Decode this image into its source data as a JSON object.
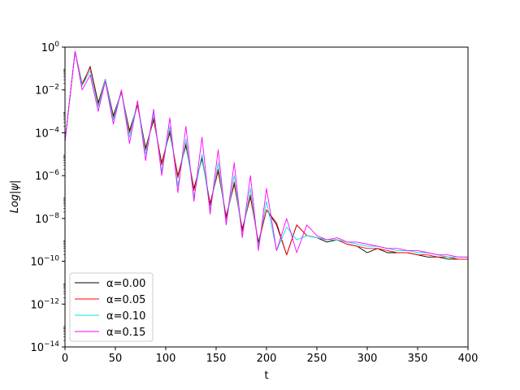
{
  "chart_data": {
    "type": "line",
    "title": "",
    "xlabel": "t",
    "ylabel": "Log|ψ|",
    "xlim": [
      0,
      400
    ],
    "ylim_exponent": [
      -14,
      0
    ],
    "yscale": "log",
    "grid": false,
    "legend_position": "lower-left",
    "x_ticks": [
      "0",
      "50",
      "100",
      "150",
      "200",
      "250",
      "300",
      "350",
      "400"
    ],
    "y_ticks": [
      {
        "base": "10",
        "exp": "0"
      },
      {
        "base": "10",
        "exp": "−2"
      },
      {
        "base": "10",
        "exp": "−4"
      },
      {
        "base": "10",
        "exp": "−6"
      },
      {
        "base": "10",
        "exp": "−8"
      },
      {
        "base": "10",
        "exp": "−10"
      },
      {
        "base": "10",
        "exp": "−12"
      },
      {
        "base": "10",
        "exp": "−14"
      }
    ],
    "series": [
      {
        "name": "α=0.00",
        "color": "#000000",
        "x": [
          0,
          10,
          17,
          25,
          33,
          40,
          48,
          56,
          64,
          72,
          80,
          88,
          96,
          104,
          112,
          120,
          128,
          136,
          144,
          152,
          160,
          168,
          176,
          184,
          192,
          200,
          210,
          220,
          230,
          240,
          250,
          260,
          270,
          280,
          290,
          300,
          310,
          320,
          330,
          340,
          350,
          360,
          370,
          380,
          390,
          400
        ],
        "y": [
          -4.4,
          -0.2,
          -1.8,
          -0.9,
          -2.6,
          -1.5,
          -3.2,
          -2.1,
          -3.9,
          -2.7,
          -4.7,
          -3.4,
          -5.4,
          -4.0,
          -6.0,
          -4.6,
          -6.6,
          -5.2,
          -7.3,
          -5.8,
          -7.9,
          -6.4,
          -8.5,
          -7.0,
          -9.1,
          -7.6,
          -8.3,
          -9.7,
          -8.3,
          -8.8,
          -8.9,
          -9.1,
          -9.0,
          -9.2,
          -9.3,
          -9.6,
          -9.4,
          -9.6,
          -9.6,
          -9.6,
          -9.7,
          -9.8,
          -9.8,
          -9.9,
          -9.9,
          -9.9
        ]
      },
      {
        "name": "α=0.05",
        "color": "#ff0000",
        "x": [
          0,
          10,
          17,
          25,
          33,
          40,
          48,
          56,
          64,
          72,
          80,
          88,
          96,
          104,
          112,
          120,
          128,
          136,
          144,
          152,
          160,
          168,
          176,
          184,
          192,
          200,
          210,
          220,
          230,
          240,
          250,
          260,
          270,
          280,
          290,
          300,
          310,
          320,
          330,
          340,
          350,
          360,
          370,
          380,
          390,
          400
        ],
        "y": [
          -4.4,
          -0.2,
          -1.7,
          -0.95,
          -2.7,
          -1.5,
          -3.3,
          -2.1,
          -4.0,
          -2.7,
          -4.8,
          -3.3,
          -5.5,
          -3.9,
          -6.1,
          -4.5,
          -6.7,
          -5.1,
          -7.4,
          -5.7,
          -8.0,
          -6.3,
          -8.6,
          -6.9,
          -9.2,
          -7.6,
          -8.2,
          -9.7,
          -8.3,
          -8.8,
          -8.9,
          -9.0,
          -9.0,
          -9.2,
          -9.3,
          -9.4,
          -9.4,
          -9.5,
          -9.6,
          -9.6,
          -9.7,
          -9.7,
          -9.8,
          -9.8,
          -9.9,
          -9.9
        ]
      },
      {
        "name": "α=0.10",
        "color": "#00e5e5",
        "x": [
          0,
          10,
          17,
          25,
          33,
          40,
          48,
          56,
          64,
          72,
          80,
          88,
          96,
          104,
          112,
          120,
          128,
          136,
          144,
          152,
          160,
          168,
          176,
          184,
          192,
          200,
          210,
          220,
          230,
          240,
          250,
          260,
          270,
          280,
          290,
          300,
          310,
          320,
          330,
          340,
          350,
          360,
          370,
          380,
          390,
          400
        ],
        "y": [
          -4.4,
          -0.2,
          -1.8,
          -1.1,
          -2.8,
          -1.5,
          -3.4,
          -2.0,
          -4.2,
          -2.5,
          -5.0,
          -3.1,
          -5.8,
          -3.7,
          -6.5,
          -4.3,
          -7.0,
          -5.0,
          -7.6,
          -5.4,
          -8.2,
          -6.0,
          -8.8,
          -6.6,
          -9.3,
          -7.2,
          -9.5,
          -8.4,
          -9.0,
          -8.8,
          -8.9,
          -9.0,
          -9.0,
          -9.1,
          -9.2,
          -9.3,
          -9.3,
          -9.4,
          -9.5,
          -9.5,
          -9.6,
          -9.6,
          -9.7,
          -9.8,
          -9.8,
          -9.8
        ]
      },
      {
        "name": "α=0.15",
        "color": "#ff00ff",
        "x": [
          0,
          10,
          17,
          25,
          33,
          40,
          48,
          56,
          64,
          72,
          80,
          88,
          96,
          104,
          112,
          120,
          128,
          136,
          144,
          152,
          160,
          168,
          176,
          184,
          192,
          200,
          210,
          220,
          230,
          240,
          250,
          260,
          270,
          280,
          290,
          300,
          310,
          320,
          330,
          340,
          350,
          360,
          370,
          380,
          390,
          400
        ],
        "y": [
          -4.4,
          -0.2,
          -2.0,
          -1.3,
          -3.0,
          -1.6,
          -3.6,
          -2.0,
          -4.5,
          -2.5,
          -5.3,
          -2.9,
          -6.0,
          -3.3,
          -6.8,
          -3.7,
          -7.2,
          -4.2,
          -7.8,
          -4.8,
          -8.3,
          -5.4,
          -8.9,
          -6.0,
          -9.5,
          -6.6,
          -9.5,
          -8.0,
          -9.6,
          -8.3,
          -8.8,
          -9.0,
          -8.9,
          -9.1,
          -9.1,
          -9.2,
          -9.3,
          -9.4,
          -9.4,
          -9.5,
          -9.5,
          -9.6,
          -9.7,
          -9.7,
          -9.8,
          -9.8
        ]
      }
    ]
  }
}
